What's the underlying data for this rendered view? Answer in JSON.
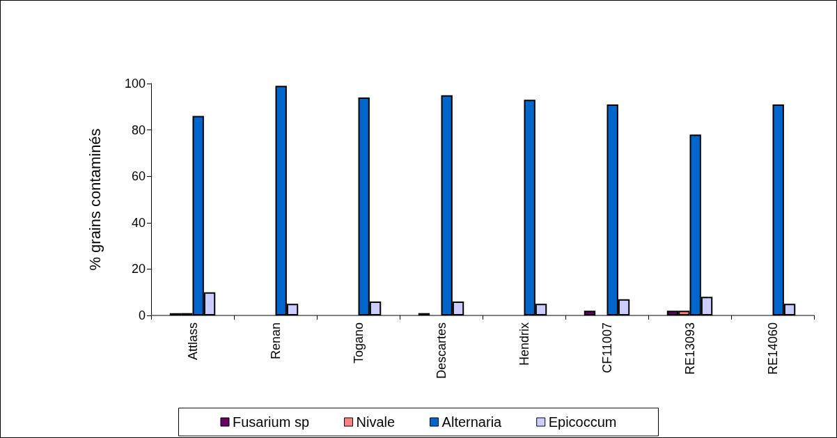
{
  "chart_data": {
    "type": "bar",
    "ylabel": "% grains contaminés",
    "categories": [
      "Attlass",
      "Renan",
      "Togano",
      "Descartes",
      "Hendrix",
      "CF11007",
      "RE13093",
      "RE14060"
    ],
    "series": [
      {
        "name": "Fusarium sp",
        "color": "#660066",
        "values": [
          1,
          null,
          null,
          1,
          null,
          2,
          2,
          null
        ]
      },
      {
        "name": "Nivale",
        "color": "#ff8080",
        "values": [
          1,
          null,
          null,
          null,
          null,
          null,
          2,
          null
        ]
      },
      {
        "name": "Alternaria",
        "color": "#0066cc",
        "values": [
          86,
          99,
          94,
          95,
          93,
          91,
          78,
          91
        ]
      },
      {
        "name": "Epicoccum",
        "color": "#ccccff",
        "values": [
          10,
          5,
          6,
          6,
          5,
          7,
          8,
          5
        ]
      }
    ],
    "ylim": [
      0,
      100
    ],
    "yticks": [
      0,
      20,
      40,
      60,
      80,
      100
    ],
    "grid": false,
    "legend": "bottom"
  }
}
